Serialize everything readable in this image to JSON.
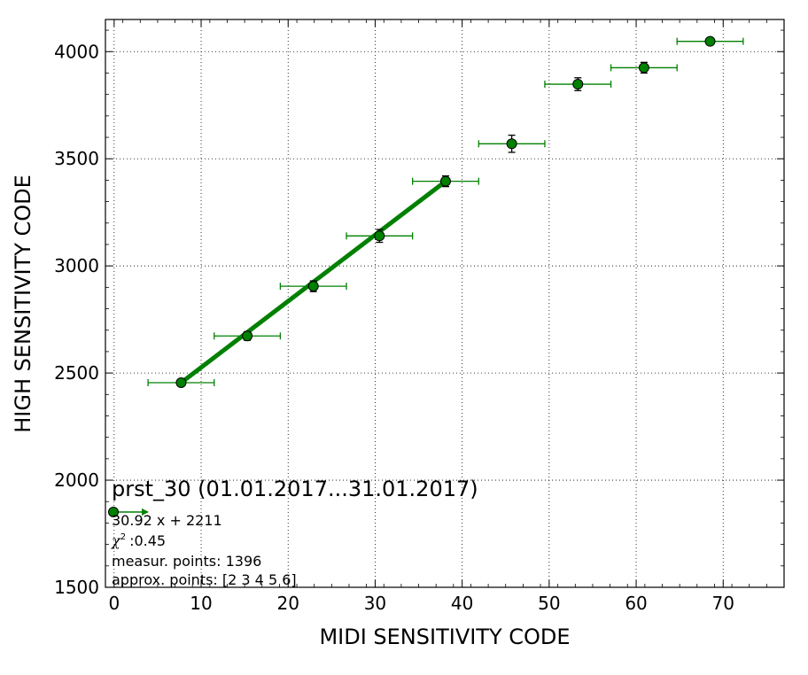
{
  "chart_data": {
    "type": "scatter",
    "title": "prst_30 (01.01.2017...31.01.2017)",
    "xlabel": "MIDI SENSITIVITY CODE",
    "ylabel": "HIGH SENSITIVITY CODE",
    "xlim": [
      -1,
      77
    ],
    "ylim": [
      1500,
      4150
    ],
    "xticks": [
      0,
      10,
      20,
      30,
      40,
      50,
      60,
      70
    ],
    "yticks": [
      1500,
      2000,
      2500,
      3000,
      3500,
      4000
    ],
    "xtick_labels": [
      "0",
      "10",
      "20",
      "30",
      "40",
      "50",
      "60",
      "70"
    ],
    "ytick_labels": [
      "1500",
      "2000",
      "2500",
      "3000",
      "3500",
      "4000"
    ],
    "grid": true,
    "marker_color": "#008000",
    "line_color": "#008000",
    "series": [
      {
        "points": [
          {
            "x": 7.7,
            "y": 2455,
            "xerr": 3.8,
            "yerr": 15
          },
          {
            "x": 15.3,
            "y": 2673,
            "xerr": 3.8,
            "yerr": 20
          },
          {
            "x": 22.9,
            "y": 2905,
            "xerr": 3.8,
            "yerr": 25
          },
          {
            "x": 30.5,
            "y": 3140,
            "xerr": 3.8,
            "yerr": 30
          },
          {
            "x": 38.1,
            "y": 3395,
            "xerr": 3.8,
            "yerr": 25
          },
          {
            "x": 45.7,
            "y": 3570,
            "xerr": 3.8,
            "yerr": 40
          },
          {
            "x": 53.3,
            "y": 3848,
            "xerr": 3.8,
            "yerr": 30
          },
          {
            "x": 60.9,
            "y": 3925,
            "xerr": 3.8,
            "yerr": 25
          },
          {
            "x": 68.5,
            "y": 4048,
            "xerr": 3.8,
            "yerr": 15
          }
        ]
      }
    ],
    "fit_line": {
      "x": [
        7.7,
        38.1
      ],
      "y": [
        2455,
        3395
      ]
    },
    "annotations": {
      "equation": "30.92 x + 2211",
      "chi2_value": ":0.45",
      "measured": "measur. points: 1396",
      "approx": "approx. points: [2 3 4 5 6]"
    }
  }
}
